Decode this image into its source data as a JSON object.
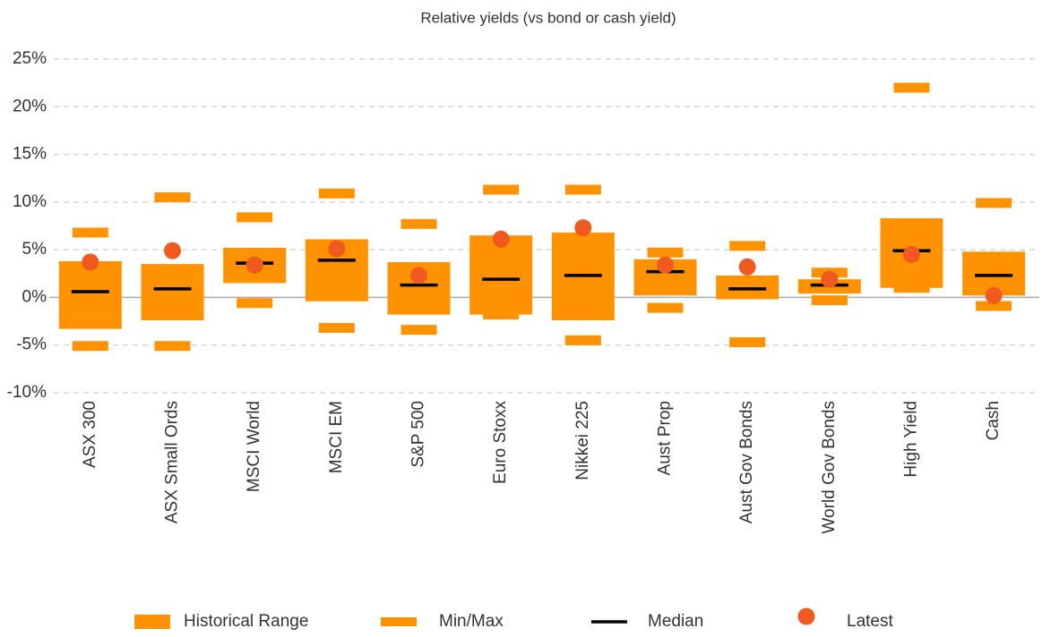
{
  "chart_data": {
    "type": "range",
    "title": "Relative yields (vs bond or cash yield)",
    "categories": [
      "ASX 300",
      "ASX Small Ords",
      "MSCI World",
      "MSCI EM",
      "S&P 500",
      "Euro Stoxx",
      "Nikkei 225",
      "Aust Prop",
      "Aust Gov Bonds",
      "World Gov Bonds",
      "High Yield",
      "Cash"
    ],
    "series": [
      {
        "name": "Historical Range",
        "color": "#ff9200",
        "low": [
          -3.3,
          -2.4,
          1.5,
          -0.4,
          -1.8,
          -1.8,
          -2.4,
          0.2,
          -0.2,
          0.4,
          1.0,
          0.2
        ],
        "high": [
          3.8,
          3.5,
          5.2,
          6.1,
          3.7,
          6.5,
          6.8,
          4.0,
          2.3,
          1.9,
          8.3,
          4.8
        ]
      },
      {
        "name": "Min/Max",
        "color": "#ff9200",
        "min": [
          -5.1,
          -5.1,
          -0.6,
          -3.2,
          -3.4,
          -1.8,
          -4.5,
          -1.1,
          -4.7,
          -0.3,
          1.0,
          -0.9
        ],
        "max": [
          6.8,
          10.5,
          8.4,
          10.9,
          7.7,
          11.3,
          11.3,
          4.7,
          5.4,
          2.6,
          22.0,
          9.9
        ]
      },
      {
        "name": "Median",
        "color": "#000000",
        "values": [
          0.6,
          0.9,
          3.6,
          3.9,
          1.3,
          1.9,
          2.3,
          2.7,
          0.9,
          1.3,
          4.9,
          2.3
        ]
      },
      {
        "name": "Latest",
        "color": "#f05a1e",
        "values": [
          3.7,
          4.9,
          3.4,
          5.1,
          2.3,
          6.1,
          7.3,
          3.4,
          3.2,
          1.9,
          4.5,
          0.2
        ]
      }
    ],
    "ylim": [
      -10,
      25
    ],
    "yticks": [
      {
        "value": -10,
        "label": "-10%"
      },
      {
        "value": -5,
        "label": "-5%"
      },
      {
        "value": 0,
        "label": "0%"
      },
      {
        "value": 5,
        "label": "5%"
      },
      {
        "value": 10,
        "label": "10%"
      },
      {
        "value": 15,
        "label": "15%"
      },
      {
        "value": 20,
        "label": "20%"
      },
      {
        "value": 25,
        "label": "25%"
      }
    ],
    "grid": true,
    "legend": "bottom"
  }
}
